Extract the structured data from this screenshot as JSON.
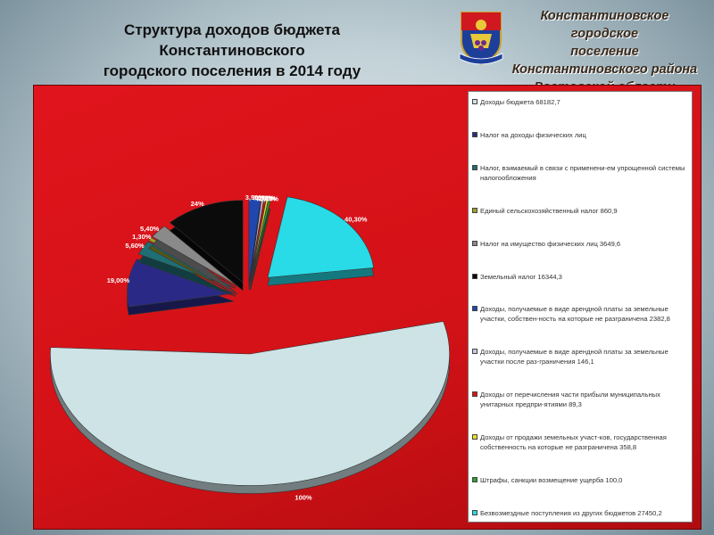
{
  "slide": {
    "title_lines": [
      "Структура доходов бюджета",
      "Константиновского",
      "городского поселения  в 2014 году"
    ]
  },
  "organization": {
    "lines": [
      "Константиновское городское",
      "поселение",
      "Константиновского района",
      "Ростовской области"
    ]
  },
  "colors": {
    "panel": "#d31217",
    "legend_bg": "#ffffff"
  },
  "chart_data": {
    "type": "pie",
    "title": "",
    "legend_position": "right",
    "slices": [
      {
        "label": "Доходы бюджета 68182,7",
        "pct_label": "100%",
        "color": "#cde3e6"
      },
      {
        "label": "Налог на доходы физических лиц",
        "pct_label": "19,00%",
        "value_pct": 19.0,
        "color": "#2a2a86"
      },
      {
        "label": "Налог, взимаемый в связи с применени-ем упрощенной системы налогообложения",
        "pct_label": "5,60%",
        "value_pct": 5.6,
        "color": "#1f6e74"
      },
      {
        "label": "Единый сельскохозяйственный налог 860,9",
        "pct_label": "1,30%",
        "value_pct": 1.3,
        "color": "#9ea21e"
      },
      {
        "label": "Налог на имущество физических лиц 3649,6",
        "pct_label": "5,40%",
        "value_pct": 5.4,
        "color": "#8a8a8a"
      },
      {
        "label": "Земельный налог 16344,3",
        "pct_label": "24%",
        "value_pct": 24.0,
        "color": "#0b0b0b"
      },
      {
        "label": "Доходы, получаемые в виде арендной платы за земельные участки, собствен-ность на которые не разграничена 2382,8",
        "pct_label": "3,50%",
        "value_pct": 3.5,
        "color": "#2046b0"
      },
      {
        "label": "Доходы, получаемые в виде арендной платы за земельные участки после раз-граничения 146,1",
        "pct_label": "0,20%",
        "value_pct": 0.2,
        "color": "#c8c8e8"
      },
      {
        "label": "Доходы от перечисления части прибыли муниципальных унитарных предпри-ятиями 89,3",
        "pct_label": "0,10%",
        "value_pct": 0.1,
        "color": "#e0101a"
      },
      {
        "label": "Доходы от продажи земельных участ-ков, государственная собственность на которые не разграничена 358,8",
        "pct_label": "0,50%",
        "value_pct": 0.5,
        "color": "#e8e020"
      },
      {
        "label": "Штрафы, санкции возмещение ущерба 100,0",
        "pct_label": "0,10%",
        "value_pct": 0.1,
        "color": "#2ea02e"
      },
      {
        "label": "Безвозмездные поступления из других бюджетов 27450,2",
        "pct_label": "40,30%",
        "value_pct": 40.3,
        "color": "#28dbe6"
      }
    ]
  }
}
